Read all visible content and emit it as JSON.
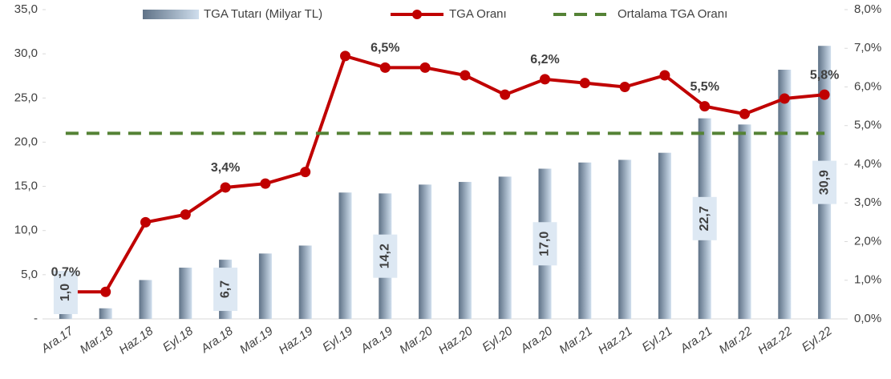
{
  "chart_data": {
    "type": "combo",
    "categories": [
      "Ara.17",
      "Mar.18",
      "Haz.18",
      "Eyl.18",
      "Ara.18",
      "Mar.19",
      "Haz.19",
      "Eyl.19",
      "Ara.19",
      "Mar.20",
      "Haz.20",
      "Eyl.20",
      "Ara.20",
      "Mar.21",
      "Haz.21",
      "Eyl.21",
      "Ara.21",
      "Mar.22",
      "Haz.22",
      "Eyl.22"
    ],
    "series": [
      {
        "name": "TGA Tutarı (Milyar TL)",
        "type": "bar",
        "axis": "y",
        "color": "#8fa6be",
        "values": [
          1.0,
          1.2,
          4.4,
          5.8,
          6.7,
          7.4,
          8.3,
          14.3,
          14.2,
          15.2,
          15.5,
          16.1,
          17.0,
          17.7,
          18.0,
          18.8,
          22.7,
          22.0,
          28.2,
          30.9
        ],
        "value_labels": [
          "1,0",
          null,
          null,
          null,
          "6,7",
          null,
          null,
          null,
          "14,2",
          null,
          null,
          null,
          "17,0",
          null,
          null,
          null,
          "22,7",
          null,
          null,
          "30,9"
        ]
      },
      {
        "name": "TGA Oranı",
        "type": "line",
        "axis": "y2",
        "color": "#c00000",
        "values": [
          0.7,
          0.7,
          2.5,
          2.7,
          3.4,
          3.5,
          3.8,
          6.8,
          6.5,
          6.5,
          6.3,
          5.8,
          6.2,
          6.1,
          6.0,
          6.3,
          5.5,
          5.3,
          5.7,
          5.8
        ],
        "value_labels": [
          "0,7%",
          null,
          null,
          null,
          "3,4%",
          null,
          null,
          null,
          "6,5%",
          null,
          null,
          null,
          "6,2%",
          null,
          null,
          null,
          "5,5%",
          null,
          null,
          "5,8%"
        ]
      },
      {
        "name": "Ortalama TGA Oranı",
        "type": "line",
        "axis": "y2",
        "color": "#548235",
        "dashed": true,
        "values": [
          4.8,
          4.8,
          4.8,
          4.8,
          4.8,
          4.8,
          4.8,
          4.8,
          4.8,
          4.8,
          4.8,
          4.8,
          4.8,
          4.8,
          4.8,
          4.8,
          4.8,
          4.8,
          4.8,
          4.8
        ]
      }
    ],
    "ylim": [
      0,
      35
    ],
    "yticks": [
      {
        "value": 0,
        "label": "-"
      },
      {
        "value": 5,
        "label": "5,0"
      },
      {
        "value": 10,
        "label": "10,0"
      },
      {
        "value": 15,
        "label": "15,0"
      },
      {
        "value": 20,
        "label": "20,0"
      },
      {
        "value": 25,
        "label": "25,0"
      },
      {
        "value": 30,
        "label": "30,0"
      },
      {
        "value": 35,
        "label": "35,0"
      }
    ],
    "y2lim": [
      0,
      8
    ],
    "y2ticks": [
      {
        "value": 0,
        "label": "0,0%"
      },
      {
        "value": 1,
        "label": "1,0%"
      },
      {
        "value": 2,
        "label": "2,0%"
      },
      {
        "value": 3,
        "label": "3,0%"
      },
      {
        "value": 4,
        "label": "4,0%"
      },
      {
        "value": 5,
        "label": "5,0%"
      },
      {
        "value": 6,
        "label": "6,0%"
      },
      {
        "value": 7,
        "label": "7,0%"
      },
      {
        "value": 8,
        "label": "8,0%"
      }
    ],
    "legend": "top",
    "grid": false
  }
}
